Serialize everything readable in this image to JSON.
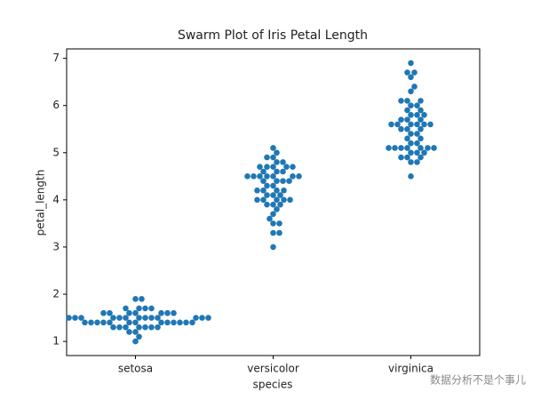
{
  "chart_data": {
    "type": "swarm",
    "title": "Swarm Plot of Iris Petal Length",
    "xlabel": "species",
    "ylabel": "petal_length",
    "color": "#1f77b4",
    "categories": [
      "setosa",
      "versicolor",
      "virginica"
    ],
    "values": [
      [
        1.4,
        1.4,
        1.3,
        1.5,
        1.4,
        1.7,
        1.4,
        1.5,
        1.4,
        1.5,
        1.5,
        1.6,
        1.4,
        1.1,
        1.2,
        1.5,
        1.3,
        1.4,
        1.7,
        1.5,
        1.7,
        1.5,
        1.0,
        1.7,
        1.9,
        1.6,
        1.6,
        1.5,
        1.4,
        1.6,
        1.6,
        1.5,
        1.5,
        1.4,
        1.5,
        1.2,
        1.3,
        1.4,
        1.3,
        1.5,
        1.3,
        1.3,
        1.3,
        1.6,
        1.9,
        1.4,
        1.6,
        1.4,
        1.5,
        1.4
      ],
      [
        4.7,
        4.5,
        4.9,
        4.0,
        4.6,
        4.5,
        4.7,
        3.3,
        4.6,
        3.9,
        3.5,
        4.2,
        4.0,
        4.7,
        3.6,
        4.4,
        4.5,
        4.1,
        4.5,
        3.9,
        4.8,
        4.0,
        4.9,
        4.7,
        4.3,
        4.4,
        4.8,
        5.0,
        4.5,
        3.5,
        3.8,
        3.7,
        3.9,
        5.1,
        4.5,
        4.5,
        4.7,
        4.4,
        4.1,
        4.0,
        4.4,
        4.6,
        4.0,
        3.3,
        4.2,
        4.2,
        4.2,
        4.3,
        3.0,
        4.1
      ],
      [
        6.0,
        5.1,
        5.9,
        5.6,
        5.8,
        6.6,
        4.5,
        6.3,
        5.8,
        6.1,
        5.1,
        5.3,
        5.5,
        5.0,
        5.1,
        5.3,
        5.5,
        6.7,
        6.9,
        5.0,
        5.7,
        4.9,
        6.7,
        4.9,
        5.7,
        6.0,
        4.8,
        4.9,
        5.6,
        5.8,
        6.1,
        6.4,
        5.6,
        5.1,
        5.6,
        6.1,
        5.6,
        5.5,
        4.8,
        5.4,
        5.6,
        5.1,
        5.1,
        5.9,
        5.7,
        5.2,
        5.0,
        5.2,
        5.4,
        5.1
      ]
    ],
    "ylim": [
      0.7,
      7.2
    ],
    "yticks": [
      1,
      2,
      3,
      4,
      5,
      6,
      7
    ]
  },
  "watermark": "数据分析不是个事儿"
}
